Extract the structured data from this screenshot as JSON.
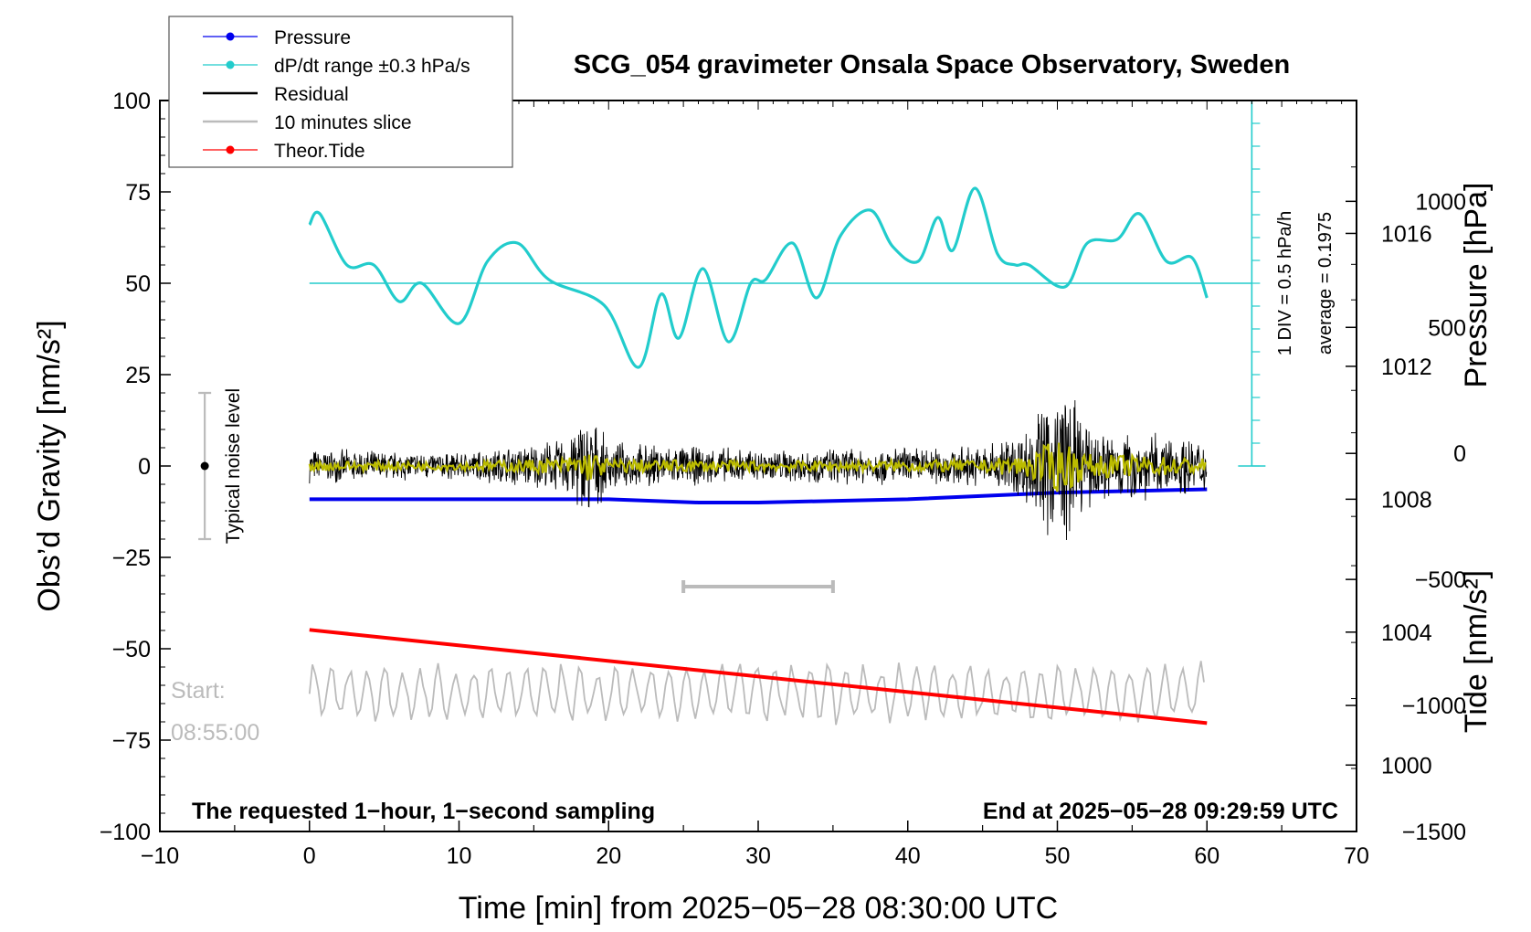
{
  "chart_data": {
    "type": "line",
    "title": "SCG_054 gravimeter Onsala Space Observatory, Sweden",
    "xlabel": "Time [min] from 2025−05−28 08:30:00 UTC",
    "ylabel_left": "Obs’d Gravity [nm/s²]",
    "ylabel_right_top": "Pressure [hPa]",
    "ylabel_right_bottom": "Tide [nm/s²]",
    "xlim": [
      -10,
      70
    ],
    "ylim": [
      -100,
      100
    ],
    "pressure_axis_range": [
      998,
      1020
    ],
    "tide_axis_range": [
      -1500,
      1400
    ],
    "x_ticks": [
      -10,
      0,
      10,
      20,
      30,
      40,
      50,
      60,
      70
    ],
    "x_tick_labels": [
      "−10",
      "0",
      "10",
      "20",
      "30",
      "40",
      "50",
      "60",
      "70"
    ],
    "y_ticks": [
      -100,
      -75,
      -50,
      -25,
      0,
      25,
      50,
      75,
      100
    ],
    "y_tick_labels": [
      "−100",
      "−75",
      "−50",
      "−25",
      "0",
      "25",
      "50",
      "75",
      "100"
    ],
    "pressure_ticks": [
      1000,
      1004,
      1008,
      1012,
      1016
    ],
    "pressure_tick_labels": [
      "1000",
      "1004",
      "1008",
      "1012",
      "1016"
    ],
    "tide_ticks": [
      -1500,
      -1000,
      -500,
      0,
      500,
      1000
    ],
    "tide_tick_labels": [
      "−1500",
      "−1000",
      "−500",
      "0",
      "500",
      "1000"
    ],
    "legend": [
      {
        "label": "Pressure",
        "color": "#0000ee",
        "marker": true
      },
      {
        "label": "dP/dt range ±0.3 hPa/s",
        "color": "#22cccc",
        "marker": true
      },
      {
        "label": "Residual",
        "color": "#000000",
        "marker": false
      },
      {
        "label": "10 minutes slice",
        "color": "#bbbbbb",
        "marker": false
      },
      {
        "label": "Theor.Tide",
        "color": "#ff0000",
        "marker": true
      }
    ],
    "series": [
      {
        "name": "Pressure",
        "axis": "pressure",
        "color": "#0000ee",
        "x": [
          0,
          10,
          20,
          26,
          30,
          40,
          50,
          60
        ],
        "values": [
          1008.0,
          1008.0,
          1008.0,
          1007.9,
          1007.9,
          1008.0,
          1008.2,
          1008.3
        ]
      },
      {
        "name": "dP/dt",
        "axis": "gravity",
        "color": "#22cccc",
        "x": [
          0,
          0.7,
          2.5,
          4.3,
          6,
          7.5,
          10,
          11.9,
          13.9,
          16,
          19.7,
          22,
          23.5,
          24.7,
          26.3,
          28,
          29.5,
          30.5,
          32.3,
          33.9,
          35.5,
          37.5,
          39,
          40.7,
          42,
          43,
          44.5,
          46,
          47.2,
          48.1,
          50.5,
          52,
          54,
          55.5,
          57.3,
          59,
          60
        ],
        "values": [
          66,
          69,
          55,
          55,
          45,
          50,
          39,
          56,
          61,
          51,
          44,
          27,
          47,
          35,
          54,
          34,
          50,
          51,
          61,
          46,
          63,
          70,
          60,
          56,
          68,
          59,
          76,
          58,
          55,
          55,
          49,
          61,
          62,
          69,
          56,
          57,
          46
        ]
      },
      {
        "name": "Residual",
        "axis": "gravity",
        "color": "#000000",
        "x": [
          0,
          10,
          17,
          18.5,
          20,
          30,
          45,
          48,
          50.2,
          52,
          60
        ],
        "envelope": [
          5,
          4,
          8,
          17,
          7,
          5,
          6,
          12,
          28,
          12,
          8
        ]
      },
      {
        "name": "Filtered residual",
        "axis": "gravity",
        "color": "#bbbb00",
        "x": [
          0,
          60
        ],
        "values": [
          0,
          0
        ]
      },
      {
        "name": "10 minutes slice",
        "axis": "gravity",
        "color": "#bbbbbb",
        "x": [
          0,
          60
        ],
        "values": [
          -62,
          -62
        ]
      },
      {
        "name": "Theor.Tide",
        "axis": "tide",
        "color": "#ff0000",
        "x": [
          0,
          60
        ],
        "values": [
          -700,
          -1070
        ]
      }
    ],
    "noise_level": {
      "label": "Typical noise level",
      "x": -7,
      "y": 0,
      "range": [
        -20,
        20
      ]
    },
    "slice_bracket": {
      "x_start": 25,
      "x_end": 35,
      "y": -33
    },
    "pressure_scale": {
      "div_label": "1 DIV = 0.5 hPa/h",
      "average_label": "average = 0.1975",
      "x": 63,
      "y_bottom": 0,
      "y_top": 100,
      "baseline": 50
    },
    "annotations": {
      "start_label": "Start:",
      "start_time": "08:55:00",
      "bottom_left": "The requested 1−hour, 1−second sampling",
      "bottom_right": "End at 2025−05−28 09:29:59 UTC"
    }
  }
}
